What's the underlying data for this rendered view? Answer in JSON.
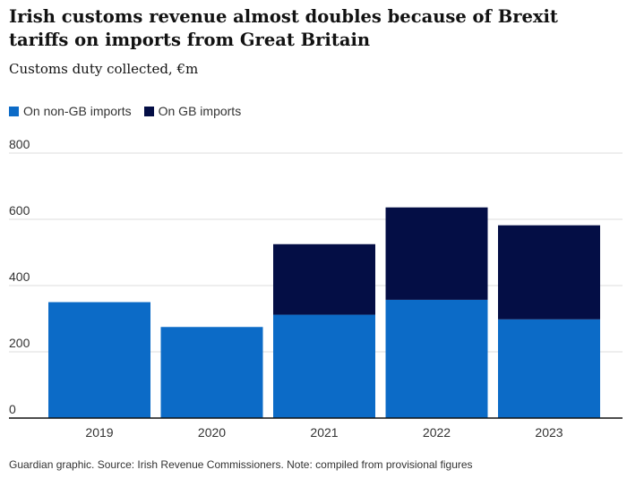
{
  "chart_data": {
    "type": "bar",
    "stacked": true,
    "title": "Irish customs revenue almost doubles because of Brexit tariffs on imports from Great Britain",
    "subtitle": "Customs duty collected, €m",
    "categories": [
      "2019",
      "2020",
      "2021",
      "2022",
      "2023"
    ],
    "series": [
      {
        "name": "On non-GB imports",
        "color": "#0c6bc7",
        "values": [
          350,
          275,
          312,
          357,
          298
        ]
      },
      {
        "name": "On GB imports",
        "color": "#040e45",
        "values": [
          0,
          0,
          213,
          279,
          284
        ]
      }
    ],
    "ylim": [
      0,
      800
    ],
    "yticks": [
      "0",
      "200",
      "400",
      "600",
      "800"
    ],
    "grid": true,
    "legend": "top-left",
    "xlabel": "",
    "ylabel": ""
  },
  "footer": "Guardian graphic. Source: Irish Revenue Commissioners. Note: compiled from provisional figures"
}
